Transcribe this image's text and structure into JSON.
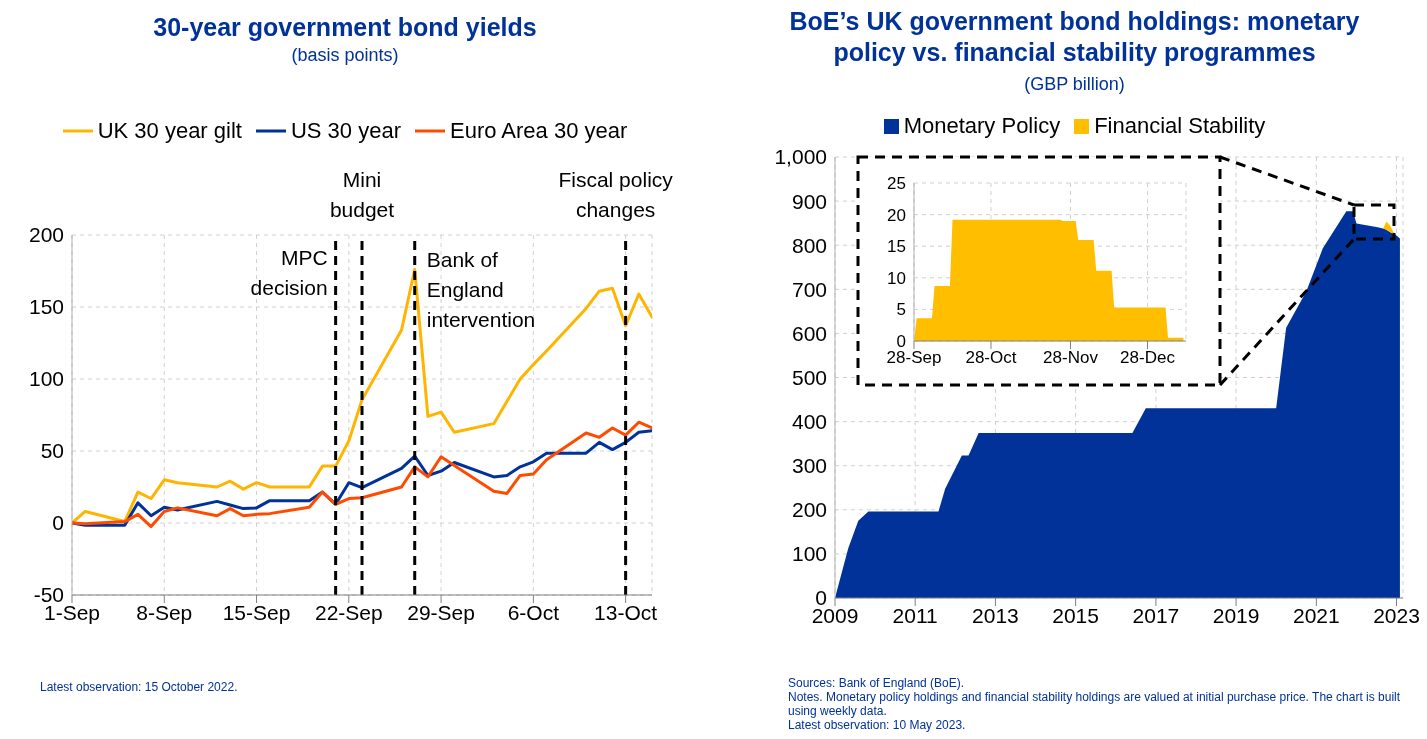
{
  "chart_data": [
    {
      "type": "line",
      "title": "30-year government bond yields",
      "subtitle": "(basis points)",
      "x": [
        "--09-01",
        "--09-02",
        "--09-05",
        "--09-06",
        "--09-07",
        "--09-08",
        "--09-09",
        "--09-12",
        "--09-13",
        "--09-14",
        "--09-15",
        "--09-16",
        "--09-19",
        "--09-20",
        "--09-21",
        "--09-22",
        "--09-23",
        "--09-26",
        "--09-27",
        "--09-28",
        "--09-29",
        "--09-30",
        "--10-03",
        "--10-04",
        "--10-05",
        "--10-06",
        "--10-07",
        "--10-10",
        "--10-11",
        "--10-12",
        "--10-13",
        "--10-14",
        "--10-15"
      ],
      "series": [
        {
          "name": "UK 30 year gilt",
          "color": "#ffb400",
          "values": [
            0,
            8,
            1,
            21.5,
            17,
            30,
            28,
            25,
            29,
            23.5,
            28,
            25,
            25,
            39.5,
            39.5,
            57,
            85.5,
            134,
            176,
            74,
            77,
            63,
            69,
            84.5,
            100,
            110,
            119.5,
            149,
            161,
            163,
            137,
            159,
            143
          ]
        },
        {
          "name": "US 30 year",
          "color": "#003299",
          "values": [
            0,
            -1.5,
            -1.5,
            14,
            5,
            11,
            9,
            15,
            12.5,
            10,
            10.5,
            15.5,
            15.5,
            21.5,
            13,
            28,
            24.5,
            38,
            46.5,
            33,
            36,
            42,
            32,
            33,
            39,
            42.5,
            48.5,
            48.5,
            56,
            51,
            56,
            63,
            64
          ]
        },
        {
          "name": "Euro Area 30 year",
          "color": "#ff4b00",
          "values": [
            0,
            -0.5,
            1,
            6,
            -2.5,
            8,
            10.5,
            5,
            10,
            5,
            6,
            6.5,
            11,
            21.5,
            13,
            17,
            17.5,
            25,
            39,
            32,
            46,
            40,
            22,
            20.5,
            33,
            34,
            44,
            62.5,
            59.5,
            66,
            61,
            70,
            66
          ]
        }
      ],
      "xlim": [
        "--09-01",
        "--10-15"
      ],
      "xticks": [
        {
          "value": "--09-01",
          "label": "1-Sep"
        },
        {
          "value": "--09-08",
          "label": "8-Sep"
        },
        {
          "value": "--09-15",
          "label": "15-Sep"
        },
        {
          "value": "--09-22",
          "label": "22-Sep"
        },
        {
          "value": "--09-29",
          "label": "29-Sep"
        },
        {
          "value": "--10-06",
          "label": "6-Oct"
        },
        {
          "value": "--10-13",
          "label": "13-Oct"
        }
      ],
      "ylim": [
        -50,
        200
      ],
      "yticks": [
        -50,
        0,
        50,
        100,
        150,
        200
      ],
      "grid": true,
      "legend": "top",
      "ref_lines": [
        {
          "axis": "x",
          "value": "--09-21",
          "label": "MPC decision",
          "color": "#000000",
          "line_style": "dashed"
        },
        {
          "axis": "x",
          "value": "--09-23",
          "label": "Mini budget",
          "color": "#000000",
          "line_style": "dashed"
        },
        {
          "axis": "x",
          "value": "--09-27",
          "label": "Bank of England intervention",
          "color": "#000000",
          "line_style": "dashed"
        },
        {
          "axis": "x",
          "value": "--10-13",
          "label": "Fiscal policy changes",
          "color": "#000000",
          "line_style": "dashed"
        }
      ],
      "annotations": [
        "Latest observation: 15 October 2022."
      ]
    },
    {
      "type": "area",
      "title": "BoE’s UK government bond holdings: monetary policy vs. financial stability programmes",
      "subtitle": "(GBP billion)",
      "stacked": true,
      "x": [
        "2009-01",
        "2009-05",
        "2009-08",
        "2009-11",
        "2011-08",
        "2011-10",
        "2012-03",
        "2012-05",
        "2012-08",
        "2016-06",
        "2016-10",
        "2020-01",
        "2020-04",
        "2020-10",
        "2021-03",
        "2021-10",
        "2021-12",
        "2022-01",
        "2022-07",
        "2022-09",
        "2022-10",
        "2022-11",
        "2022-12",
        "2023-01",
        "2023-02"
      ],
      "series": [
        {
          "name": "Monetary Policy",
          "color": "#003299",
          "values": [
            0,
            112,
            175,
            196,
            196,
            248,
            323,
            323,
            374,
            374,
            430,
            430,
            613,
            695,
            793,
            877,
            877,
            849,
            841,
            838,
            835,
            830,
            826,
            822,
            815
          ]
        },
        {
          "name": "Financial Stability",
          "color": "#ffbf00",
          "values": [
            null,
            null,
            null,
            null,
            null,
            null,
            null,
            null,
            null,
            null,
            null,
            null,
            null,
            null,
            null,
            null,
            null,
            null,
            null,
            0,
            19,
            16,
            5,
            0,
            null
          ]
        }
      ],
      "xlim": [
        "2009-01",
        "2023-03"
      ],
      "xticks": [
        "2009",
        "2011",
        "2013",
        "2015",
        "2017",
        "2019",
        "2021",
        "2023"
      ],
      "ylim": [
        0,
        1000
      ],
      "yticks": [
        0,
        100,
        200,
        300,
        400,
        500,
        600,
        700,
        800,
        900,
        {
          "value": 1000,
          "label": "1,000"
        }
      ],
      "grid": true,
      "legend": "top",
      "annotations": [
        "Sources: Bank of England (BoE).",
        "Notes. Monetary policy holdings and financial stability holdings are valued at initial purchase price. The chart is built using weekly data.",
        "Latest observation: 10 May 2023."
      ]
    },
    {
      "type": "area",
      "x": [
        "2022-09-28",
        "2022-09-29",
        "2022-10-05",
        "2022-10-06",
        "2022-10-12",
        "2022-10-13",
        "2022-11-24",
        "2022-11-25",
        "2022-11-30",
        "2022-12-01",
        "2022-12-07",
        "2022-12-08",
        "2022-12-14",
        "2022-12-15",
        "2023-01-04",
        "2023-01-05",
        "2023-01-11"
      ],
      "series": [
        {
          "color": "#ffbf00",
          "values": [
            0,
            3.6,
            3.6,
            8.7,
            8.7,
            19.2,
            19.2,
            19,
            19,
            16,
            16,
            11.1,
            11.1,
            5.3,
            5.3,
            0.5,
            0.5
          ]
        }
      ],
      "xlim": [
        "2022-09-28",
        "2023-01-12"
      ],
      "xticks": [
        {
          "value": "2022-09-28",
          "label": "28-Sep"
        },
        {
          "value": "2022-10-28",
          "label": "28-Oct"
        },
        {
          "value": "2022-11-28",
          "label": "28-Nov"
        },
        {
          "value": "2022-12-28",
          "label": "28-Dec"
        }
      ],
      "ylim": [
        0,
        25
      ],
      "yticks": [
        0,
        5,
        10,
        15,
        20,
        25
      ],
      "grid": true
    }
  ]
}
